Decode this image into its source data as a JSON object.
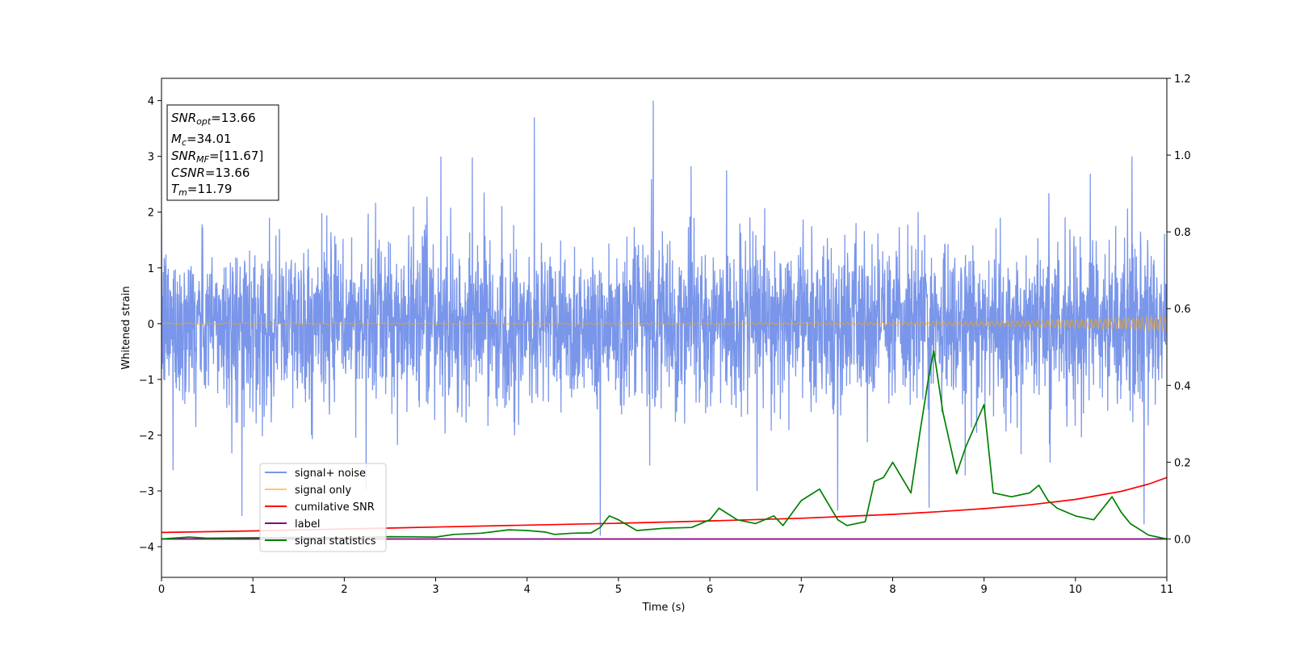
{
  "chart_data": {
    "type": "line",
    "xlabel": "Time (s)",
    "ylabel": "Whitened strain",
    "xlim": [
      0,
      11
    ],
    "ylim": [
      -4.55,
      4.4
    ],
    "y2lim": [
      -0.1,
      1.2
    ],
    "xticks": [
      0,
      1,
      2,
      3,
      4,
      5,
      6,
      7,
      8,
      9,
      10,
      11
    ],
    "yticks": [
      -4,
      -3,
      -2,
      -1,
      0,
      1,
      2,
      3,
      4
    ],
    "y2ticks": [
      0.0,
      0.2,
      0.4,
      0.6,
      0.8,
      1.0,
      1.2
    ],
    "grid": false,
    "legend_position": "lower-left",
    "annotation": {
      "snr_opt": {
        "sym": "SNR",
        "sub": "opt",
        "value": "=13.66"
      },
      "mc": {
        "sym": "M",
        "sub": "c",
        "value": "=34.01"
      },
      "snr_mf": {
        "sym": "SNR",
        "sub": "MF",
        "value": "=[11.67]"
      },
      "csnr": {
        "sym": "CSNR",
        "value": "=13.66"
      },
      "tm": {
        "sym": "T",
        "sub": "m",
        "value": "=11.79"
      }
    },
    "series": [
      {
        "name": "signal+ noise",
        "color": "#4169e1",
        "axis": "left",
        "kind": "noise",
        "typical_range": [
          -1.5,
          1.5
        ],
        "extremes": [
          [
            5.38,
            4.0
          ],
          [
            4.08,
            3.7
          ],
          [
            0.88,
            -3.45
          ],
          [
            7.4,
            -3.35
          ],
          [
            10.75,
            -3.6
          ],
          [
            4.8,
            -3.8
          ],
          [
            8.4,
            -3.3
          ]
        ]
      },
      {
        "name": "signal only",
        "color": "#ffa500",
        "axis": "left",
        "kind": "chirp",
        "amplitude_start": 0.01,
        "amplitude_end": 0.12
      },
      {
        "name": "cumilative SNR",
        "color": "#ff0000",
        "axis": "right",
        "x": [
          0,
          1,
          2,
          3,
          4,
          5,
          6,
          7,
          7.5,
          8,
          8.5,
          9,
          9.5,
          10,
          10.5,
          10.8,
          11
        ],
        "y": [
          0.017,
          0.021,
          0.026,
          0.031,
          0.036,
          0.041,
          0.047,
          0.054,
          0.059,
          0.064,
          0.071,
          0.079,
          0.089,
          0.103,
          0.124,
          0.143,
          0.16
        ]
      },
      {
        "name": "label",
        "color": "#800080",
        "axis": "right",
        "x": [
          0,
          11
        ],
        "y": [
          0,
          0
        ]
      },
      {
        "name": "signal statistics",
        "color": "#008000",
        "axis": "right",
        "x": [
          0,
          0.3,
          0.5,
          1,
          1.5,
          2,
          2.5,
          3,
          3.2,
          3.5,
          3.8,
          4,
          4.2,
          4.3,
          4.5,
          4.7,
          4.8,
          4.9,
          5,
          5.2,
          5.5,
          5.8,
          6,
          6.1,
          6.3,
          6.5,
          6.7,
          6.8,
          7,
          7.2,
          7.4,
          7.5,
          7.7,
          7.8,
          7.9,
          8,
          8.2,
          8.3,
          8.4,
          8.45,
          8.55,
          8.7,
          8.8,
          9,
          9.1,
          9.3,
          9.5,
          9.6,
          9.7,
          9.8,
          10,
          10.2,
          10.4,
          10.5,
          10.6,
          10.8,
          11
        ],
        "y": [
          0.0,
          0.005,
          0.002,
          0.003,
          0.004,
          0.003,
          0.006,
          0.005,
          0.012,
          0.015,
          0.024,
          0.022,
          0.018,
          0.012,
          0.015,
          0.016,
          0.03,
          0.06,
          0.05,
          0.022,
          0.028,
          0.03,
          0.05,
          0.08,
          0.05,
          0.04,
          0.06,
          0.035,
          0.1,
          0.13,
          0.05,
          0.035,
          0.045,
          0.15,
          0.16,
          0.2,
          0.12,
          0.28,
          0.43,
          0.49,
          0.33,
          0.17,
          0.24,
          0.35,
          0.12,
          0.11,
          0.12,
          0.14,
          0.1,
          0.08,
          0.06,
          0.05,
          0.11,
          0.07,
          0.04,
          0.01,
          0.0
        ]
      }
    ]
  }
}
